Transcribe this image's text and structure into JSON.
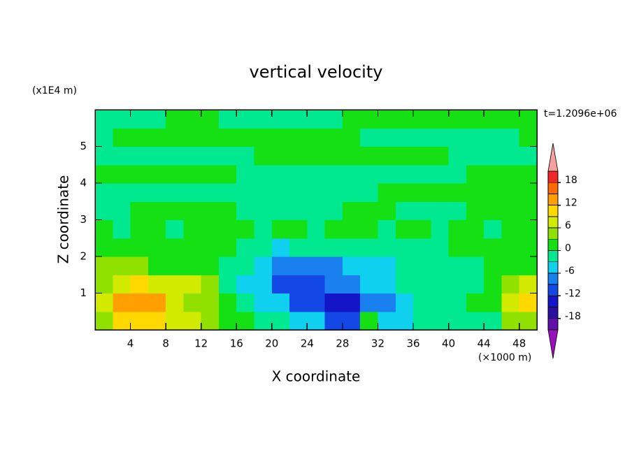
{
  "chart_data": {
    "type": "contour",
    "title": "vertical velocity",
    "xlabel": "X coordinate",
    "ylabel": "Z coordinate",
    "xunit": "(×1000 m)",
    "yunit": "(x1E4 m)",
    "time_label": "t=1.2096e+06",
    "xlim": [
      0,
      50
    ],
    "ylim": [
      0,
      6
    ],
    "xticks": [
      4,
      8,
      12,
      16,
      20,
      24,
      28,
      32,
      36,
      40,
      44,
      48
    ],
    "yticks": [
      1,
      2,
      3,
      4,
      5
    ],
    "x": [
      1,
      3,
      5,
      7,
      9,
      11,
      13,
      15,
      17,
      19,
      21,
      23,
      25,
      27,
      29,
      31,
      33,
      35,
      37,
      39,
      41,
      43,
      45,
      47,
      49
    ],
    "y": [
      0.25,
      0.75,
      1.25,
      1.75,
      2.25,
      2.75,
      3.25,
      3.75,
      4.25,
      4.75,
      5.25,
      5.75
    ],
    "z": [
      [
        5,
        9,
        9,
        9,
        6,
        6,
        3,
        0,
        0,
        -2,
        -2,
        -6,
        -6,
        -10,
        -10,
        1,
        -5,
        -5,
        -2,
        -2,
        -1,
        -1,
        -1,
        4,
        4
      ],
      [
        8,
        14,
        14,
        12,
        8,
        4,
        4,
        0,
        -2,
        -5,
        -5,
        -10,
        -10,
        -14,
        -14,
        -7,
        -7,
        -4,
        -1,
        -1,
        -1,
        1,
        1,
        6,
        9
      ],
      [
        5,
        8,
        10,
        8,
        6,
        6,
        3,
        -1,
        -4,
        -4,
        -10,
        -10,
        -10,
        -8,
        -8,
        -5,
        -5,
        -2,
        -2,
        -1,
        -1,
        -1,
        1,
        5,
        8
      ],
      [
        4,
        4,
        4,
        1,
        1,
        1,
        1,
        -1,
        -1,
        -4,
        -8,
        -8,
        -8,
        -8,
        -4,
        -4,
        -4,
        -1,
        -1,
        -1,
        -1,
        -1,
        1,
        1,
        1
      ],
      [
        1,
        1,
        1,
        1,
        1,
        1,
        1,
        1,
        -1,
        -1,
        -4,
        -1,
        -1,
        -1,
        -1,
        -1,
        -1,
        -1,
        -1,
        -1,
        1,
        1,
        1,
        1,
        1
      ],
      [
        1,
        -1,
        1,
        1,
        -1,
        1,
        1,
        1,
        1,
        -1,
        1,
        1,
        -1,
        1,
        1,
        1,
        -1,
        1,
        1,
        -1,
        1,
        1,
        -1,
        1,
        1
      ],
      [
        -1,
        -1,
        1,
        1,
        1,
        1,
        1,
        1,
        -1,
        -1,
        -1,
        -1,
        -1,
        -1,
        1,
        1,
        1,
        -1,
        -1,
        -1,
        -1,
        1,
        1,
        1,
        1
      ],
      [
        -1,
        -1,
        -1,
        -1,
        -1,
        -1,
        -1,
        -1,
        -1,
        -1,
        -1,
        -1,
        -1,
        -1,
        -1,
        -1,
        1,
        1,
        1,
        1,
        1,
        1,
        1,
        1,
        1
      ],
      [
        1,
        1,
        1,
        1,
        1,
        1,
        1,
        1,
        -1,
        -1,
        -1,
        -1,
        -1,
        -1,
        -1,
        -1,
        -1,
        -1,
        -1,
        -1,
        -1,
        1,
        1,
        1,
        1
      ],
      [
        -1,
        -1,
        -1,
        -1,
        -1,
        -1,
        -1,
        -1,
        -1,
        1,
        1,
        1,
        1,
        1,
        1,
        1,
        1,
        1,
        1,
        1,
        -1,
        -1,
        -1,
        -1,
        -1
      ],
      [
        -1,
        1,
        1,
        1,
        1,
        1,
        1,
        1,
        1,
        1,
        1,
        1,
        1,
        1,
        1,
        -1,
        -1,
        -1,
        -1,
        -1,
        -1,
        -1,
        -1,
        -1,
        1
      ],
      [
        -1,
        -1,
        -1,
        -1,
        1,
        1,
        1,
        -1,
        -1,
        -1,
        -1,
        -1,
        -1,
        -1,
        1,
        1,
        1,
        1,
        1,
        1,
        1,
        1,
        1,
        1,
        1
      ]
    ],
    "levels": [
      -21,
      -18,
      -15,
      -12,
      -9,
      -6,
      -3,
      0,
      3,
      6,
      9,
      12,
      15,
      18,
      21
    ],
    "colors": [
      "#9a10b8",
      "#6010a8",
      "#2a10a0",
      "#1414c8",
      "#1448e6",
      "#1a80f0",
      "#10d0f0",
      "#00e890",
      "#14e014",
      "#90e000",
      "#d2ea00",
      "#ffd800",
      "#ffa000",
      "#ff6a00",
      "#f02828",
      "#f4a0a0"
    ],
    "cbar_ticks": [
      -18,
      -12,
      -6,
      0,
      6,
      12,
      18
    ]
  }
}
